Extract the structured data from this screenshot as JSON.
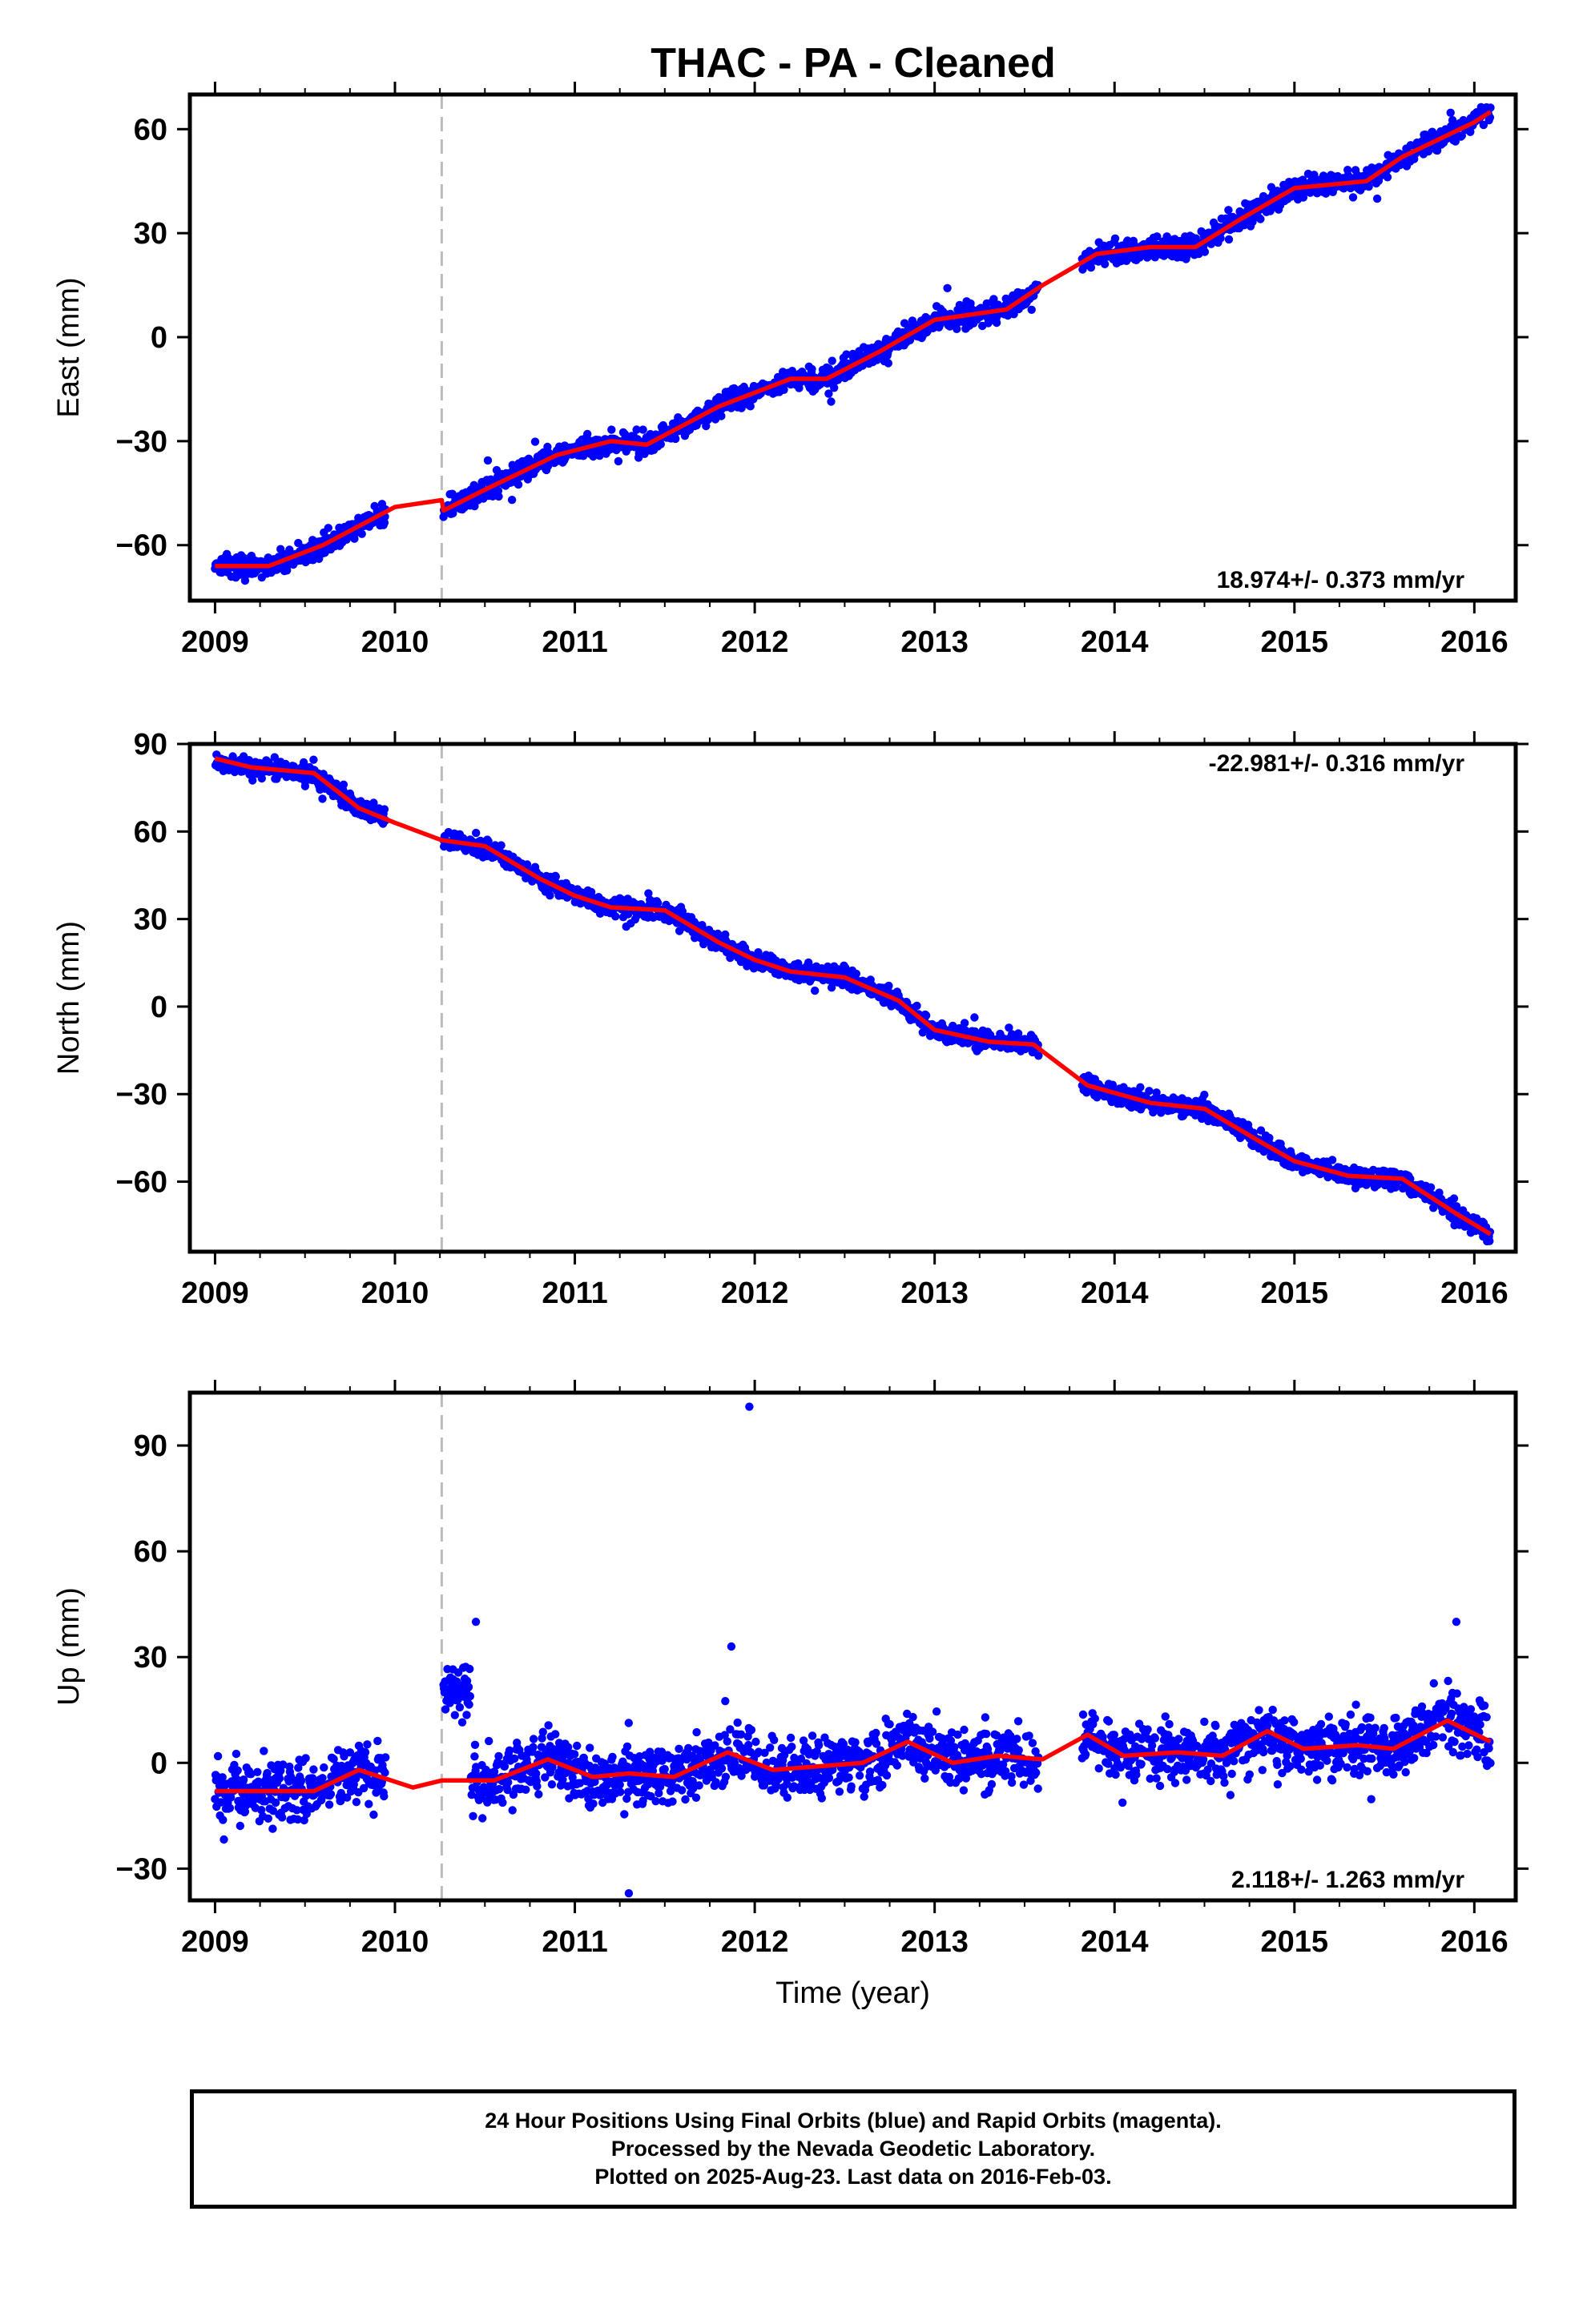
{
  "title": "THAC  - PA - Cleaned",
  "footer": {
    "lines": [
      "24 Hour Positions Using Final Orbits (blue) and Rapid Orbits (magenta).",
      "Processed by the Nevada Geodetic Laboratory.",
      "Plotted on 2025-Aug-23. Last data on 2016-Feb-03."
    ]
  },
  "colors": {
    "points": "#0000ff",
    "fit": "#ff0000",
    "event_line": "#bbbbbb",
    "axes": "#000000"
  },
  "chart_data": [
    {
      "type": "scatter",
      "component": "East",
      "ylabel": "East (mm)",
      "xlabel": "",
      "rate": "18.974+/- 0.373 mm/yr",
      "rate_position": "bottom-right",
      "xlim": [
        2008.86,
        2016.23
      ],
      "ylim": [
        -76,
        70
      ],
      "xticks": [
        2009,
        2010,
        2011,
        2012,
        2013,
        2014,
        2015,
        2016
      ],
      "xtick_labels": [
        "2009",
        "2010",
        "2011",
        "2012",
        "2013",
        "2014",
        "2015",
        "2016"
      ],
      "yticks": [
        -60,
        -30,
        0,
        30,
        60
      ],
      "ytick_labels": [
        "−60",
        "−30",
        "0",
        "30",
        "60"
      ],
      "event_x": 2010.26,
      "data_spans": [
        [
          2009.0,
          2009.95
        ],
        [
          2010.27,
          2013.58
        ],
        [
          2013.82,
          2016.09
        ]
      ],
      "scatter": {
        "noise": 2.2,
        "outlier_rate": 0.01
      },
      "fit": {
        "x": [
          2009.0,
          2009.3,
          2009.6,
          2010.0,
          2010.26,
          2010.27,
          2010.5,
          2010.9,
          2011.2,
          2011.4,
          2011.8,
          2012.2,
          2012.4,
          2012.7,
          2013.0,
          2013.4,
          2013.6,
          2013.9,
          2014.2,
          2014.45,
          2014.7,
          2015.0,
          2015.4,
          2015.6,
          2016.0,
          2016.09
        ],
        "y": [
          -66,
          -66,
          -60,
          -49,
          -47,
          -50,
          -44,
          -34,
          -30,
          -31,
          -20,
          -12,
          -12,
          -4,
          5,
          8,
          15,
          24,
          26,
          26,
          34,
          43,
          45,
          52,
          62,
          65
        ]
      }
    },
    {
      "type": "scatter",
      "component": "North",
      "ylabel": "North (mm)",
      "xlabel": "",
      "rate": "-22.981+/- 0.316 mm/yr",
      "rate_position": "top-right",
      "xlim": [
        2008.86,
        2016.23
      ],
      "ylim": [
        -84,
        90
      ],
      "xticks": [
        2009,
        2010,
        2011,
        2012,
        2013,
        2014,
        2015,
        2016
      ],
      "xtick_labels": [
        "2009",
        "2010",
        "2011",
        "2012",
        "2013",
        "2014",
        "2015",
        "2016"
      ],
      "yticks": [
        -60,
        -30,
        0,
        30,
        60,
        90
      ],
      "ytick_labels": [
        "−60",
        "−30",
        "0",
        "30",
        "60",
        "90"
      ],
      "event_x": 2010.26,
      "data_spans": [
        [
          2009.0,
          2009.95
        ],
        [
          2010.27,
          2013.58
        ],
        [
          2013.82,
          2016.09
        ]
      ],
      "scatter": {
        "noise": 2.2,
        "outlier_rate": 0.01
      },
      "fit": {
        "x": [
          2009.0,
          2009.2,
          2009.55,
          2009.8,
          2010.0,
          2010.26,
          2010.5,
          2010.8,
          2011.0,
          2011.2,
          2011.5,
          2011.8,
          2012.0,
          2012.2,
          2012.5,
          2012.8,
          2013.0,
          2013.3,
          2013.55,
          2013.85,
          2014.2,
          2014.5,
          2014.8,
          2015.0,
          2015.3,
          2015.6,
          2015.9,
          2016.09
        ],
        "y": [
          85,
          82,
          80,
          68,
          63,
          57,
          55,
          44,
          38,
          34,
          33,
          22,
          16,
          12,
          10,
          2,
          -8,
          -12,
          -13,
          -27,
          -33,
          -35,
          -46,
          -53,
          -58,
          -59,
          -71,
          -78
        ]
      }
    },
    {
      "type": "scatter",
      "component": "Up",
      "ylabel": "Up (mm)",
      "xlabel": "Time (year)",
      "rate": "2.118+/- 1.263 mm/yr",
      "rate_position": "bottom-right",
      "xlim": [
        2008.86,
        2016.23
      ],
      "ylim": [
        -39,
        105
      ],
      "xticks": [
        2009,
        2010,
        2011,
        2012,
        2013,
        2014,
        2015,
        2016
      ],
      "xtick_labels": [
        "2009",
        "2010",
        "2011",
        "2012",
        "2013",
        "2014",
        "2015",
        "2016"
      ],
      "yticks": [
        -30,
        0,
        30,
        60,
        90
      ],
      "ytick_labels": [
        "−30",
        "0",
        "30",
        "60",
        "90"
      ],
      "event_x": 2010.26,
      "data_spans": [
        [
          2009.0,
          2009.95
        ],
        [
          2010.27,
          2013.58
        ],
        [
          2013.82,
          2016.09
        ]
      ],
      "scatter": {
        "noise": 6,
        "outlier_rate": 0.004
      },
      "offset_segment": {
        "x": [
          2010.27,
          2010.42
        ],
        "y": 21,
        "noise": 4
      },
      "outliers": {
        "x": [
          2011.97,
          2011.87,
          2010.45,
          2011.3,
          2015.9
        ],
        "y": [
          101,
          33,
          40,
          -37,
          40
        ]
      },
      "fit": {
        "x": [
          2009.0,
          2009.3,
          2009.55,
          2009.8,
          2010.1,
          2010.26,
          2010.55,
          2010.85,
          2011.1,
          2011.3,
          2011.55,
          2011.85,
          2012.1,
          2012.35,
          2012.6,
          2012.85,
          2013.1,
          2013.35,
          2013.6,
          2013.85,
          2014.05,
          2014.35,
          2014.6,
          2014.85,
          2015.05,
          2015.35,
          2015.55,
          2015.85,
          2016.09
        ],
        "y": [
          -8,
          -8,
          -8,
          -2,
          -7,
          -5,
          -5,
          1,
          -4,
          -3,
          -4,
          3,
          -2,
          -1,
          0,
          6,
          0,
          2,
          1,
          8,
          2,
          3,
          2,
          9,
          4,
          5,
          4,
          12,
          6
        ]
      }
    }
  ]
}
